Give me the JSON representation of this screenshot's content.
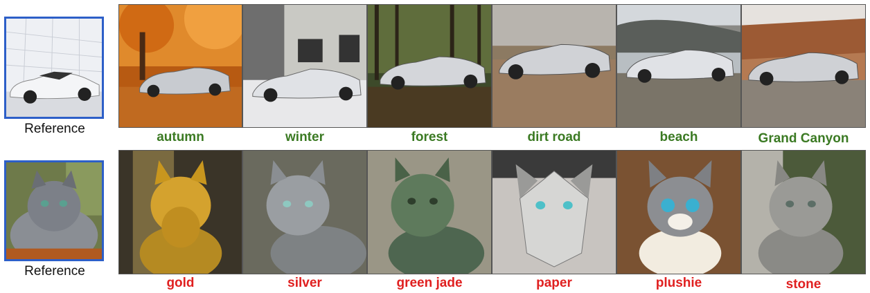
{
  "reference_label": "Reference",
  "car_row": {
    "reference_label": "Reference",
    "captions": [
      "autumn",
      "winter",
      "forest",
      "dirt road",
      "beach",
      "Grand Canyon"
    ],
    "caption_color": "#3b7a23"
  },
  "cat_row": {
    "reference_label": "Reference",
    "captions": [
      "gold",
      "silver",
      "green jade",
      "paper",
      "plushie",
      "stone"
    ],
    "caption_color": "#e02020"
  },
  "colors": {
    "reference_border": "#2d5fc8"
  }
}
